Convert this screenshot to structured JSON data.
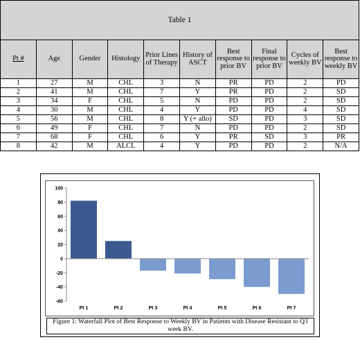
{
  "table": {
    "title": "Table 1",
    "headers": [
      "Pt #",
      "Age",
      "Gender",
      "Histology",
      "Prior Lines of Therapy",
      "History of ASCT",
      "Best response to prior BV",
      "Final response to prior BV",
      "Cycles of weekly BV",
      "Best response to weekly BV"
    ],
    "rows": [
      [
        "1",
        "27",
        "M",
        "CHL",
        "3",
        "N",
        "PR",
        "PD",
        "2",
        "PD"
      ],
      [
        "2",
        "41",
        "M",
        "CHL",
        "7",
        "Y",
        "PR",
        "PD",
        "2",
        "SD"
      ],
      [
        "3",
        "34",
        "F",
        "CHL",
        "5",
        "N",
        "PD",
        "PD",
        "2",
        "SD"
      ],
      [
        "4",
        "30",
        "M",
        "CHL",
        "4",
        "Y",
        "PD",
        "PD",
        "4",
        "SD"
      ],
      [
        "5",
        "56",
        "M",
        "CHL",
        "8",
        "Y (+ allo)",
        "SD",
        "PD",
        "3",
        "SD"
      ],
      [
        "6",
        "49",
        "F",
        "CHL",
        "7",
        "N",
        "PD",
        "PD",
        "2",
        "SD"
      ],
      [
        "7",
        "68",
        "F",
        "CHL",
        "6",
        "Y",
        "PR",
        "SD",
        "3",
        "PR"
      ],
      [
        "8",
        "42",
        "M",
        "ALCL",
        "4",
        "Y",
        "PD",
        "PD",
        "2",
        "N/A"
      ]
    ]
  },
  "figure": {
    "caption": "Figure 1: Waterfall Plot of Best Response to Weekly BV in Patients with Disease Resistant to Q3 week BV."
  },
  "chart_data": {
    "type": "bar",
    "categories": [
      "Pt 1",
      "Pt 2",
      "Pt 3",
      "Pt 4",
      "Pt 5",
      "Pt 6",
      "Pt 7"
    ],
    "values": [
      82,
      25,
      -17,
      -21,
      -29,
      -40,
      -50
    ],
    "colors": [
      "#3a5a8f",
      "#3a5a8f",
      "#7b9ccf",
      "#7b9ccf",
      "#7b9ccf",
      "#7b9ccf",
      "#7b9ccf"
    ],
    "ylim": [
      -60,
      100
    ],
    "yticks": [
      -60,
      -40,
      -20,
      0,
      20,
      40,
      60,
      80,
      100
    ],
    "grid": false,
    "legend": "none"
  }
}
